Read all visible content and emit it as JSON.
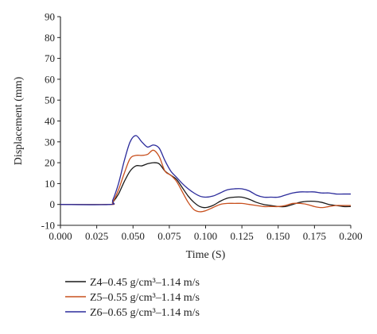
{
  "chart_data": {
    "type": "line",
    "title": "",
    "xlabel": "Time (S)",
    "ylabel": "Displacement (mm)",
    "xlim": [
      0.0,
      0.2
    ],
    "ylim": [
      -10,
      90
    ],
    "xticks": [
      "0.000",
      "0.025",
      "0.050",
      "0.075",
      "0.100",
      "0.125",
      "0.150",
      "0.175",
      "0.200"
    ],
    "yticks": [
      "-10",
      "0",
      "10",
      "20",
      "30",
      "40",
      "50",
      "60",
      "70",
      "80",
      "90"
    ],
    "grid": false,
    "legend_position": "bottom-left",
    "series": [
      {
        "name": "Z4–0.45 g/cm³–1.14 m/s",
        "color": "#1a1a1a",
        "x": [
          0.0,
          0.034,
          0.036,
          0.04,
          0.044,
          0.048,
          0.052,
          0.056,
          0.06,
          0.064,
          0.068,
          0.072,
          0.076,
          0.08,
          0.084,
          0.088,
          0.092,
          0.096,
          0.1,
          0.105,
          0.11,
          0.115,
          0.12,
          0.125,
          0.13,
          0.135,
          0.14,
          0.145,
          0.15,
          0.155,
          0.16,
          0.165,
          0.17,
          0.175,
          0.18,
          0.185,
          0.19,
          0.195,
          0.2
        ],
        "y": [
          0,
          0,
          1,
          5,
          11,
          16,
          18.5,
          18.5,
          19.5,
          20,
          19.5,
          16,
          14,
          12,
          8,
          4,
          1,
          -1,
          -1.5,
          -0.5,
          1.5,
          3,
          3.5,
          3.5,
          2.5,
          1,
          0,
          -0.5,
          -1,
          -1,
          0,
          1,
          1.5,
          1.5,
          1,
          0,
          -0.5,
          -1,
          -1
        ]
      },
      {
        "name": "Z5–0.55 g/cm³–1.14 m/s",
        "color": "#c8501e",
        "x": [
          0.0,
          0.034,
          0.036,
          0.04,
          0.044,
          0.048,
          0.052,
          0.056,
          0.06,
          0.064,
          0.068,
          0.072,
          0.076,
          0.08,
          0.084,
          0.088,
          0.092,
          0.096,
          0.1,
          0.105,
          0.11,
          0.115,
          0.12,
          0.125,
          0.13,
          0.135,
          0.14,
          0.145,
          0.15,
          0.155,
          0.16,
          0.165,
          0.17,
          0.175,
          0.18,
          0.185,
          0.19,
          0.195,
          0.2
        ],
        "y": [
          0,
          0,
          1,
          7,
          15,
          22,
          23.5,
          23.5,
          24,
          26,
          23,
          16,
          14,
          11,
          6,
          1,
          -2.5,
          -3.5,
          -3,
          -1.5,
          0,
          0.5,
          0.5,
          0.5,
          0,
          -0.5,
          -1,
          -1,
          -1,
          -0.5,
          0.5,
          0.5,
          0,
          -1,
          -1.5,
          -1,
          -0.5,
          -0.5,
          -0.5
        ]
      },
      {
        "name": "Z6–0.65 g/cm³–1.14 m/s",
        "color": "#2b2b9b",
        "x": [
          0.0,
          0.034,
          0.036,
          0.04,
          0.044,
          0.048,
          0.052,
          0.056,
          0.06,
          0.064,
          0.068,
          0.072,
          0.076,
          0.08,
          0.084,
          0.088,
          0.092,
          0.096,
          0.1,
          0.105,
          0.11,
          0.115,
          0.12,
          0.125,
          0.13,
          0.135,
          0.14,
          0.145,
          0.15,
          0.155,
          0.16,
          0.165,
          0.17,
          0.175,
          0.18,
          0.185,
          0.19,
          0.195,
          0.2
        ],
        "y": [
          0,
          0,
          2,
          10,
          21,
          30,
          33,
          30,
          27.5,
          28.5,
          27,
          21,
          16,
          13,
          10,
          7.5,
          5.5,
          4,
          3.5,
          4,
          5.5,
          7,
          7.5,
          7.5,
          6.5,
          4.5,
          3.5,
          3.5,
          3.5,
          4.5,
          5.5,
          6,
          6,
          6,
          5.5,
          5.5,
          5,
          5,
          5
        ]
      }
    ]
  }
}
